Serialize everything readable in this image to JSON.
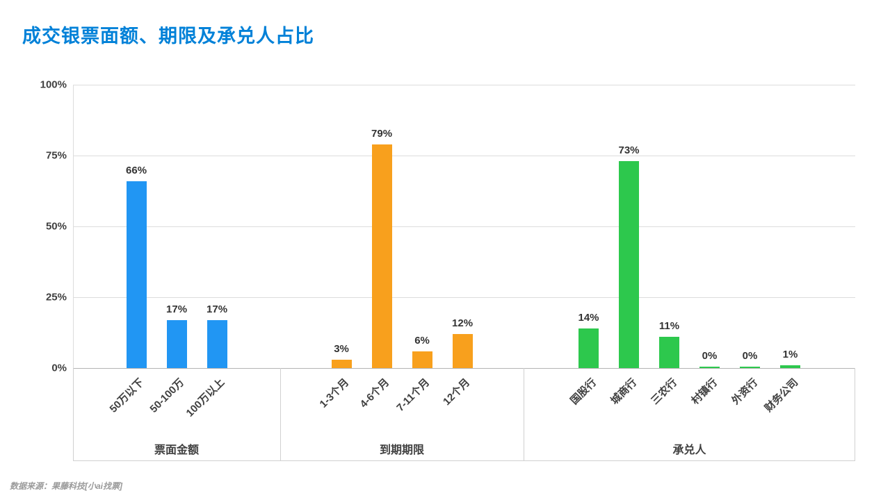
{
  "title": "成交银票面额、期限及承兑人占比",
  "source": "数据来源：果藤科技[小ai找票]",
  "colors": {
    "title_blue": "#0081D8",
    "group_amount": "#2196F3",
    "group_term": "#F8A01D",
    "group_acceptor": "#2DC84D"
  },
  "chart_data": {
    "type": "bar",
    "title": "成交银票面额、期限及承兑人占比",
    "xlabel": "",
    "ylabel": "",
    "ylim": [
      0,
      100
    ],
    "yticks": [
      "0%",
      "25%",
      "50%",
      "75%",
      "100%"
    ],
    "grid": true,
    "legend": false,
    "groups": [
      {
        "label": "票面金额",
        "color": "#2196F3",
        "categories": [
          "50万以下",
          "50-100万",
          "100万以上"
        ],
        "values": [
          66,
          17,
          17
        ]
      },
      {
        "label": "到期期限",
        "color": "#F8A01D",
        "categories": [
          "1-3个月",
          "4-6个月",
          "7-11个月",
          "12个月"
        ],
        "values": [
          3,
          79,
          6,
          12
        ]
      },
      {
        "label": "承兑人",
        "color": "#2DC84D",
        "categories": [
          "国股行",
          "城商行",
          "三农行",
          "村镇行",
          "外资行",
          "财务公司"
        ],
        "values": [
          14,
          73,
          11,
          0,
          0,
          1
        ]
      }
    ]
  }
}
